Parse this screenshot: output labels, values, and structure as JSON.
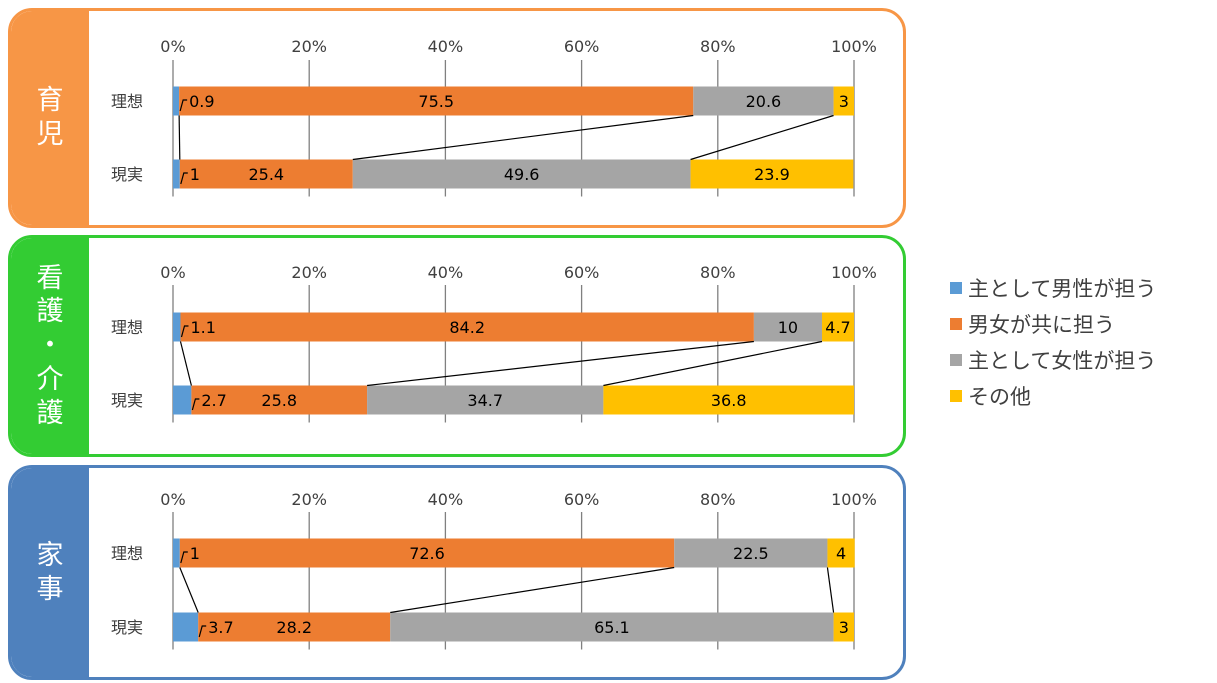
{
  "colors": {
    "male": "#5B9BD5",
    "both": "#ED7D31",
    "female": "#A5A5A5",
    "other": "#FFC000"
  },
  "chart_data": [
    {
      "type": "bar",
      "orientation": "horizontal",
      "stacked": "percent",
      "panel_label": [
        "育",
        "児"
      ],
      "panel_color": "#F79646",
      "xticks": [
        "0%",
        "20%",
        "40%",
        "60%",
        "80%",
        "100%"
      ],
      "xlim": [
        0,
        100
      ],
      "categories": [
        "理想",
        "現実"
      ],
      "series": [
        {
          "name": "主として男性が担う",
          "values": [
            0.9,
            1
          ]
        },
        {
          "name": "男女が共に担う",
          "values": [
            75.5,
            25.4
          ]
        },
        {
          "name": "主として女性が担う",
          "values": [
            20.6,
            49.6
          ]
        },
        {
          "name": "その他",
          "values": [
            3,
            23.9
          ]
        }
      ]
    },
    {
      "type": "bar",
      "orientation": "horizontal",
      "stacked": "percent",
      "panel_label": [
        "看",
        "護",
        "・",
        "介",
        "護"
      ],
      "panel_color": "#33CC33",
      "xticks": [
        "0%",
        "20%",
        "40%",
        "60%",
        "80%",
        "100%"
      ],
      "xlim": [
        0,
        100
      ],
      "categories": [
        "理想",
        "現実"
      ],
      "series": [
        {
          "name": "主として男性が担う",
          "values": [
            1.1,
            2.7
          ]
        },
        {
          "name": "男女が共に担う",
          "values": [
            84.2,
            25.8
          ]
        },
        {
          "name": "主として女性が担う",
          "values": [
            10,
            34.7
          ]
        },
        {
          "name": "その他",
          "values": [
            4.7,
            36.8
          ]
        }
      ]
    },
    {
      "type": "bar",
      "orientation": "horizontal",
      "stacked": "percent",
      "panel_label": [
        "家",
        "事"
      ],
      "panel_color": "#4F81BD",
      "xticks": [
        "0%",
        "20%",
        "40%",
        "60%",
        "80%",
        "100%"
      ],
      "xlim": [
        0,
        100
      ],
      "categories": [
        "理想",
        "現実"
      ],
      "series": [
        {
          "name": "主として男性が担う",
          "values": [
            1,
            3.7
          ]
        },
        {
          "name": "男女が共に担う",
          "values": [
            72.6,
            28.2
          ]
        },
        {
          "name": "主として女性が担う",
          "values": [
            22.5,
            65.1
          ]
        },
        {
          "name": "その他",
          "values": [
            4,
            3
          ]
        }
      ]
    }
  ],
  "legend": {
    "placement": "right",
    "items": [
      "主として男性が担う",
      "男女が共に担う",
      "主として女性が担う",
      "その他"
    ]
  }
}
